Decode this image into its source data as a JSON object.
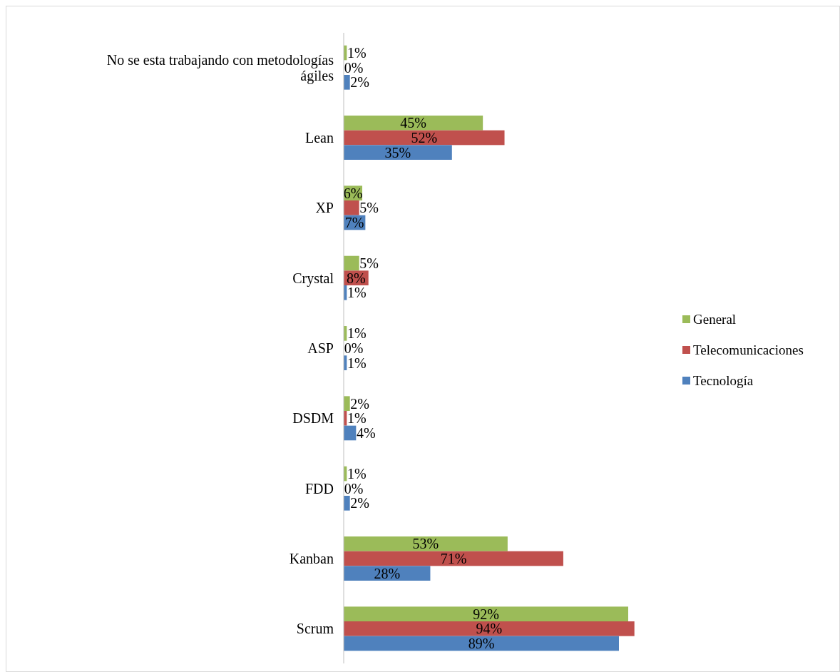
{
  "chart_data": {
    "type": "bar",
    "orientation": "horizontal",
    "categories": [
      "No se esta trabajando con metodologías ágiles",
      "Lean",
      "XP",
      "Crystal",
      "ASP",
      "DSDM",
      "FDD",
      "Kanban",
      "Scrum"
    ],
    "series": [
      {
        "name": "General",
        "color": "#9bbb59",
        "values": [
          1,
          45,
          6,
          5,
          1,
          2,
          1,
          53,
          92
        ],
        "value_labels": [
          "1%",
          "45%",
          "6%",
          "5%",
          "1%",
          "2%",
          "1%",
          "53%",
          "92%"
        ]
      },
      {
        "name": "Telecomunicaciones",
        "color": "#c0504d",
        "values": [
          0,
          52,
          5,
          8,
          0,
          1,
          0,
          71,
          94
        ],
        "value_labels": [
          "0%",
          "52%",
          "5%",
          "8%",
          "0%",
          "1%",
          "0%",
          "71%",
          "94%"
        ]
      },
      {
        "name": "Tecnología",
        "color": "#4f81bd",
        "values": [
          2,
          35,
          7,
          1,
          1,
          4,
          2,
          28,
          89
        ],
        "value_labels": [
          "2%",
          "35%",
          "7%",
          "1%",
          "1%",
          "4%",
          "2%",
          "28%",
          "89%"
        ]
      }
    ],
    "legend": "right"
  }
}
